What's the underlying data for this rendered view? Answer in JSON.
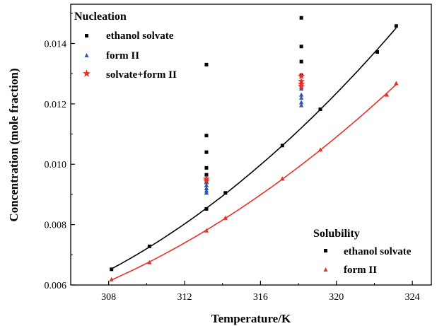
{
  "chart_data": {
    "type": "scatter",
    "xlabel": "Temperature/K",
    "ylabel": "Concentration (mole fraction)",
    "xlim": [
      306,
      325
    ],
    "ylim": [
      0.006,
      0.0153
    ],
    "xticks": [
      308,
      312,
      316,
      320,
      324
    ],
    "yticks": [
      0.006,
      0.008,
      0.01,
      0.012,
      0.014
    ],
    "ytick_labels": [
      "0.006",
      "0.008",
      "0.010",
      "0.012",
      "0.014"
    ],
    "legend_nucleation": {
      "title": "Nucleation",
      "placement": "top-left",
      "entries": [
        "ethanol solvate",
        "form II",
        "solvate+form II"
      ]
    },
    "legend_solubility": {
      "title": "Solubility",
      "placement": "bottom-right",
      "entries": [
        "ethanol solvate",
        "form II"
      ]
    },
    "series": [
      {
        "group": "nucleation",
        "marker": "square",
        "color": "#000000",
        "points": [
          [
            313.15,
            0.0133
          ],
          [
            313.15,
            0.01095
          ],
          [
            313.15,
            0.0104
          ],
          [
            313.15,
            0.00988
          ],
          [
            313.15,
            0.00965
          ],
          [
            318.15,
            0.01485
          ],
          [
            318.15,
            0.0139
          ],
          [
            318.15,
            0.0134
          ],
          [
            318.15,
            0.01295
          ]
        ]
      },
      {
        "group": "nucleation",
        "marker": "triangle",
        "color": "#3355aa",
        "points": [
          [
            313.15,
            0.0094
          ],
          [
            313.15,
            0.0093
          ],
          [
            313.15,
            0.0092
          ],
          [
            313.15,
            0.00912
          ],
          [
            313.15,
            0.00905
          ],
          [
            318.15,
            0.0125
          ],
          [
            318.15,
            0.0123
          ],
          [
            318.15,
            0.0122
          ],
          [
            318.15,
            0.01205
          ],
          [
            318.15,
            0.01195
          ]
        ]
      },
      {
        "group": "nucleation",
        "marker": "star",
        "color": "#e8302a",
        "points": [
          [
            313.15,
            0.00952
          ],
          [
            313.15,
            0.00946
          ],
          [
            318.15,
            0.01292
          ],
          [
            318.15,
            0.01275
          ],
          [
            318.15,
            0.01265
          ],
          [
            318.15,
            0.01258
          ]
        ]
      },
      {
        "group": "solubility",
        "marker": "square",
        "color": "#000000",
        "line": true,
        "points": [
          [
            308.15,
            0.00652
          ],
          [
            310.15,
            0.00728
          ],
          [
            313.15,
            0.00852
          ],
          [
            314.15,
            0.00905
          ],
          [
            317.15,
            0.01062
          ],
          [
            319.15,
            0.01182
          ],
          [
            322.15,
            0.01372
          ],
          [
            323.15,
            0.01458
          ]
        ]
      },
      {
        "group": "solubility",
        "marker": "triangle",
        "color": "#e8302a",
        "line": true,
        "points": [
          [
            308.15,
            0.00618
          ],
          [
            310.15,
            0.00675
          ],
          [
            313.15,
            0.0078
          ],
          [
            314.15,
            0.00822
          ],
          [
            317.15,
            0.00952
          ],
          [
            319.15,
            0.01048
          ],
          [
            322.65,
            0.0123
          ],
          [
            323.15,
            0.01268
          ]
        ]
      }
    ]
  }
}
